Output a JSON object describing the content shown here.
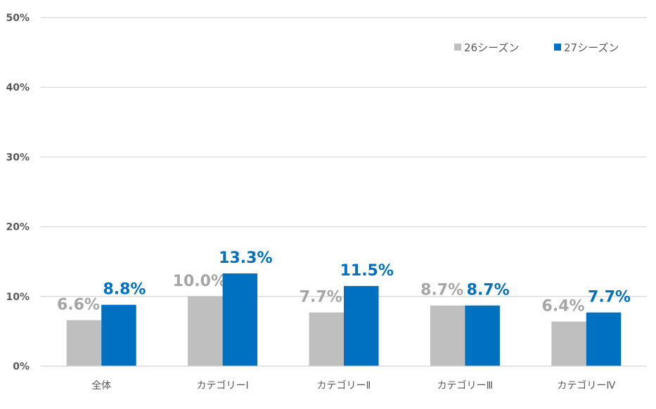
{
  "chart_data": {
    "type": "bar",
    "categories": [
      "全体",
      "カテゴリーⅠ",
      "カテゴリーⅡ",
      "カテゴリーⅢ",
      "カテゴリーⅣ"
    ],
    "series": [
      {
        "name": "26シーズン",
        "values": [
          6.6,
          10.0,
          7.7,
          8.7,
          6.4
        ],
        "labels": [
          "6.6%",
          "10.0%",
          "7.7%",
          "8.7%",
          "6.4%"
        ],
        "color": "#BFBFBF",
        "label_color": "#A6A6A6"
      },
      {
        "name": "27シーズン",
        "values": [
          8.8,
          13.3,
          11.5,
          8.7,
          7.7
        ],
        "labels": [
          "8.8%",
          "13.3%",
          "11.5%",
          "8.7%",
          "7.7%"
        ],
        "color": "#0070C0",
        "label_color": "#0070C0"
      }
    ],
    "ylim": [
      0,
      50
    ],
    "yticks": [
      "0%",
      "10%",
      "20%",
      "30%",
      "40%",
      "50%"
    ],
    "grid": true,
    "legend": "top-right",
    "title": "",
    "xlabel": "",
    "ylabel": ""
  }
}
